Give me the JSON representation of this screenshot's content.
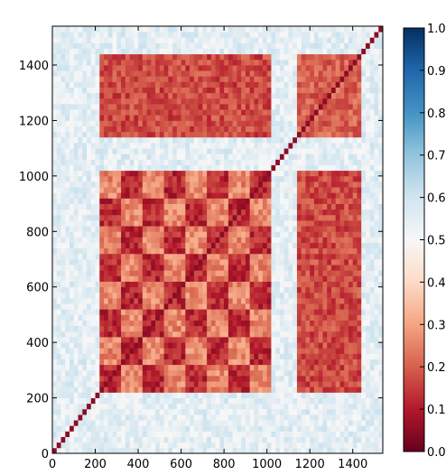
{
  "chart_data": {
    "type": "heatmap",
    "title": "",
    "xlabel": "",
    "ylabel": "",
    "xlim": [
      0,
      1540
    ],
    "ylim": [
      0,
      1540
    ],
    "x_ticks": [
      0,
      200,
      400,
      600,
      800,
      1000,
      1200,
      1400
    ],
    "y_ticks": [
      0,
      200,
      400,
      600,
      800,
      1000,
      1200,
      1400
    ],
    "x_tick_labels": [
      "0",
      "200",
      "400",
      "600",
      "800",
      "1000",
      "1200",
      "1400"
    ],
    "y_tick_labels": [
      "0",
      "200",
      "400",
      "600",
      "800",
      "1000",
      "1200",
      "1400"
    ],
    "colorbar": {
      "range": [
        0.0,
        1.0
      ],
      "ticks": [
        0.0,
        0.1,
        0.2,
        0.3,
        0.4,
        0.5,
        0.6,
        0.7,
        0.8,
        0.9,
        1.0
      ],
      "tick_labels": [
        "0.0",
        "0.1",
        "0.2",
        "0.3",
        "0.4",
        "0.5",
        "0.6",
        "0.7",
        "0.8",
        "0.9",
        "1.0"
      ],
      "colormap": "RdBu",
      "colors": [
        "#67001f",
        "#b2182b",
        "#d6604d",
        "#f4a582",
        "#fddbc7",
        "#f7f7f7",
        "#d1e5f0",
        "#92c5de",
        "#4393c3",
        "#2166ac",
        "#053061"
      ]
    },
    "blocks": [
      {
        "name": "background",
        "x": [
          0,
          1540
        ],
        "y": [
          0,
          1540
        ],
        "value": 0.55
      },
      {
        "name": "main-block",
        "x": [
          230,
          1030
        ],
        "y": [
          230,
          1030
        ],
        "value": 0.18
      },
      {
        "name": "upper-band",
        "x": [
          230,
          1030
        ],
        "y": [
          1150,
          1440
        ],
        "value": 0.17
      },
      {
        "name": "right-band",
        "x": [
          1150,
          1440
        ],
        "y": [
          230,
          1030
        ],
        "value": 0.17
      },
      {
        "name": "top-right-block",
        "x": [
          1150,
          1440
        ],
        "y": [
          1150,
          1440
        ],
        "value": 0.2
      }
    ],
    "diagonal_value": 0.0
  }
}
